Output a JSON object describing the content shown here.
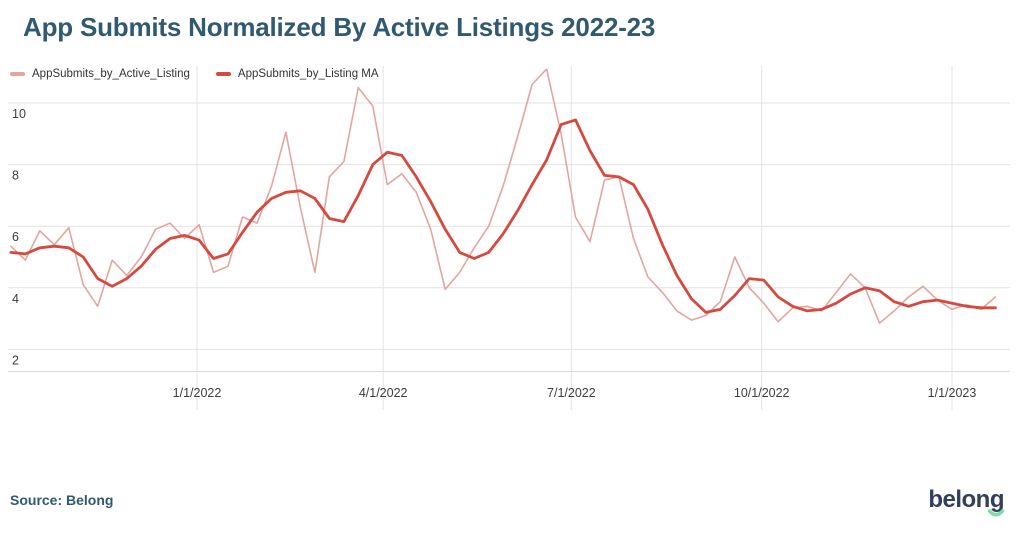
{
  "page": {
    "title": "App Submits Normalized By Active Listings 2022-23",
    "source_label": "Source: Belong",
    "logo_text": "belong"
  },
  "colors": {
    "title_text": "#315a70",
    "raw_series": "#e4a5a0",
    "ma_series": "#d6493f",
    "gridline": "#e3e3e3",
    "axis_line": "#dcdcdc",
    "tick_text": "#3d3d3d",
    "logo_navy": "#333e5b",
    "logo_green": "#7ce0a3"
  },
  "legend": {
    "items": [
      {
        "label": "AppSubmits_by_Active_Listing",
        "color": "#e4a5a0"
      },
      {
        "label": "AppSubmits_by_Listing MA",
        "color": "#d6493f"
      }
    ]
  },
  "chart_data": {
    "type": "line",
    "title": "App Submits Normalized By Active Listings 2022-23",
    "xlabel": "",
    "ylabel": "",
    "x_unit": "weekly",
    "x_start_date": "2021-10-03",
    "x_ticks": [
      {
        "label": "1/1/2022",
        "day": 90
      },
      {
        "label": "4/1/2022",
        "day": 180
      },
      {
        "label": "7/1/2022",
        "day": 271
      },
      {
        "label": "10/1/2022",
        "day": 363
      },
      {
        "label": "1/1/2023",
        "day": 455
      }
    ],
    "y_ticks": [
      10,
      8,
      6,
      4,
      2
    ],
    "ylim": [
      1.3,
      11.3
    ],
    "grid": true,
    "legend_position": "top-left",
    "series": [
      {
        "name": "AppSubmits_by_Active_Listing",
        "color": "#e4a5a0",
        "line_width": 1.6,
        "values": [
          5.35,
          4.9,
          5.85,
          5.4,
          5.95,
          4.1,
          3.4,
          4.9,
          4.4,
          5.0,
          5.9,
          6.1,
          5.6,
          6.05,
          4.5,
          4.7,
          6.3,
          6.1,
          7.3,
          9.05,
          6.6,
          4.5,
          7.6,
          8.1,
          10.5,
          9.9,
          7.35,
          7.7,
          7.1,
          5.9,
          3.95,
          4.5,
          5.3,
          6.0,
          7.3,
          8.9,
          10.6,
          11.1,
          9.0,
          6.3,
          5.5,
          7.5,
          7.6,
          5.6,
          4.35,
          3.85,
          3.25,
          2.95,
          3.1,
          3.55,
          5.0,
          4.0,
          3.5,
          2.9,
          3.35,
          3.4,
          3.25,
          3.85,
          4.45,
          4.0,
          2.85,
          3.25,
          3.7,
          4.05,
          3.6,
          3.3,
          3.45,
          3.3,
          3.7
        ]
      },
      {
        "name": "AppSubmits_by_Listing MA",
        "color": "#d6493f",
        "line_width": 2.8,
        "values": [
          5.15,
          5.1,
          5.3,
          5.35,
          5.3,
          5.0,
          4.3,
          4.05,
          4.3,
          4.7,
          5.25,
          5.6,
          5.7,
          5.55,
          4.95,
          5.1,
          5.8,
          6.45,
          6.9,
          7.1,
          7.15,
          6.9,
          6.25,
          6.15,
          7.0,
          8.0,
          8.4,
          8.3,
          7.6,
          6.8,
          5.9,
          5.15,
          4.95,
          5.15,
          5.75,
          6.5,
          7.35,
          8.15,
          9.3,
          9.45,
          8.45,
          7.65,
          7.6,
          7.35,
          6.55,
          5.4,
          4.4,
          3.65,
          3.2,
          3.3,
          3.75,
          4.3,
          4.25,
          3.7,
          3.4,
          3.25,
          3.3,
          3.5,
          3.8,
          4.0,
          3.9,
          3.55,
          3.4,
          3.55,
          3.6,
          3.5,
          3.4,
          3.35,
          3.35
        ]
      }
    ]
  }
}
